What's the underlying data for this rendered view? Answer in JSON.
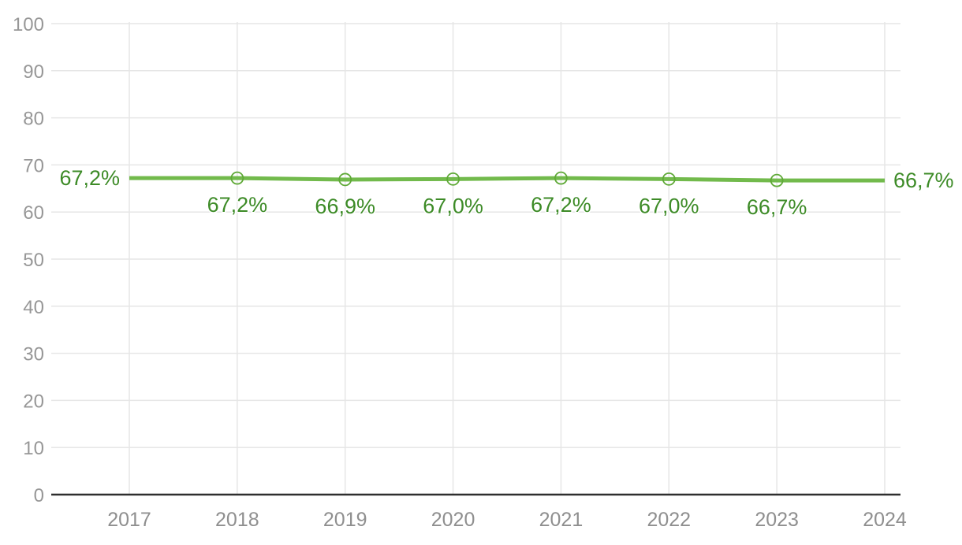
{
  "chart_data": {
    "type": "line",
    "title": "",
    "xlabel": "",
    "ylabel": "",
    "x": [
      "2017",
      "2018",
      "2019",
      "2020",
      "2021",
      "2022",
      "2023",
      "2024"
    ],
    "series": [
      {
        "name": "share-percent",
        "values": [
          67.2,
          67.2,
          66.9,
          67.0,
          67.2,
          67.0,
          66.7,
          66.7
        ],
        "point_labels": [
          "67,2%",
          "67,2%",
          "66,9%",
          "67,0%",
          "67,2%",
          "67,0%",
          "66,7%",
          "66,7%"
        ]
      }
    ],
    "ylim": [
      0,
      100
    ],
    "yticks": [
      0,
      10,
      20,
      30,
      40,
      50,
      60,
      70,
      80,
      90,
      100
    ],
    "grid": true,
    "legend_position": "none",
    "marker_indices": [
      1,
      2,
      3,
      4,
      5,
      6
    ],
    "label_layout": {
      "first": "left-of-line",
      "last": "right-of-line",
      "middle": "below-point"
    },
    "colors": {
      "line": "#72ba4c",
      "marker_stroke": "#5fa937",
      "label_text": "#3d8b27",
      "y_tick_text": "#979797",
      "x_tick_text": "#8f8f8f",
      "gridline": "#e6e6e6",
      "axis_line": "#2e2e2e",
      "background": "#ffffff"
    }
  }
}
